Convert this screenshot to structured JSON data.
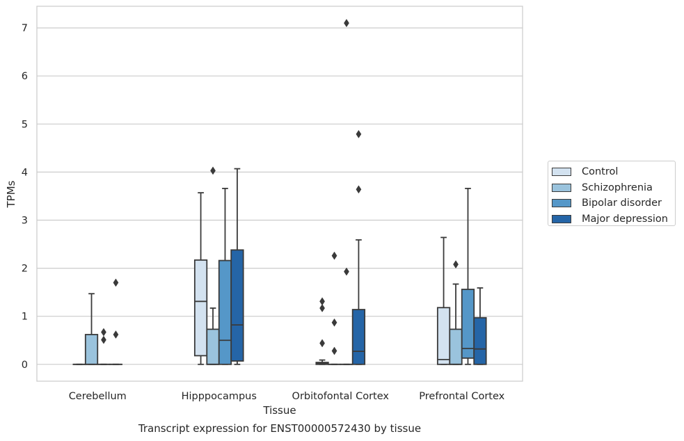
{
  "chart_data": {
    "type": "box",
    "title": "Transcript expression for ENST00000572430 by tissue",
    "xlabel": "Tissue",
    "ylabel": "TPMs",
    "ylim": [
      -0.35,
      7.45
    ],
    "yticks": [
      0,
      1,
      2,
      3,
      4,
      5,
      6,
      7
    ],
    "grid": "horizontal",
    "legend_position": "right",
    "categories": [
      "Cerebellum",
      "Hipppocampus",
      "Orbitofontal Cortex",
      "Prefrontal Cortex"
    ],
    "series": [
      {
        "name": "Control",
        "color": "#d3e2f0",
        "boxes": [
          {
            "whislo": 0,
            "q1": 0,
            "med": 0,
            "q3": 0,
            "whishi": 0,
            "fliers": []
          },
          {
            "whislo": 0,
            "q1": 0.18,
            "med": 1.31,
            "q3": 2.17,
            "whishi": 3.57,
            "fliers": []
          },
          {
            "whislo": 0,
            "q1": 0,
            "med": 0.02,
            "q3": 0.04,
            "whishi": 0.09,
            "fliers": [
              0.44,
              1.17,
              1.31
            ]
          },
          {
            "whislo": 0,
            "q1": 0,
            "med": 0.1,
            "q3": 1.18,
            "whishi": 2.64,
            "fliers": []
          }
        ]
      },
      {
        "name": "Schizophrenia",
        "color": "#9ac3dd",
        "boxes": [
          {
            "whislo": 0,
            "q1": 0,
            "med": 0,
            "q3": 0.62,
            "whishi": 1.47,
            "fliers": []
          },
          {
            "whislo": 0,
            "q1": 0,
            "med": 0,
            "q3": 0.73,
            "whishi": 1.17,
            "fliers": [
              4.03
            ]
          },
          {
            "whislo": 0,
            "q1": 0,
            "med": 0,
            "q3": 0,
            "whishi": 0,
            "fliers": [
              0.28,
              0.87,
              2.26
            ]
          },
          {
            "whislo": 0,
            "q1": 0,
            "med": 0,
            "q3": 0.73,
            "whishi": 1.67,
            "fliers": [
              2.08
            ]
          }
        ]
      },
      {
        "name": "Bipolar disorder",
        "color": "#5597c8",
        "boxes": [
          {
            "whislo": 0,
            "q1": 0,
            "med": 0,
            "q3": 0,
            "whishi": 0,
            "fliers": [
              0.51,
              0.67
            ]
          },
          {
            "whislo": 0,
            "q1": 0,
            "med": 0.5,
            "q3": 2.16,
            "whishi": 3.66,
            "fliers": []
          },
          {
            "whislo": 0,
            "q1": 0,
            "med": 0,
            "q3": 0,
            "whishi": 0,
            "fliers": [
              1.93,
              7.1
            ]
          },
          {
            "whislo": 0,
            "q1": 0.13,
            "med": 0.33,
            "q3": 1.56,
            "whishi": 3.66,
            "fliers": []
          }
        ]
      },
      {
        "name": "Major depression",
        "color": "#2565a7",
        "boxes": [
          {
            "whislo": 0,
            "q1": 0,
            "med": 0,
            "q3": 0,
            "whishi": 0,
            "fliers": [
              0.62,
              1.7
            ]
          },
          {
            "whislo": 0,
            "q1": 0.07,
            "med": 0.82,
            "q3": 2.38,
            "whishi": 4.07,
            "fliers": []
          },
          {
            "whislo": 0,
            "q1": 0,
            "med": 0.27,
            "q3": 1.14,
            "whishi": 2.59,
            "fliers": [
              3.64,
              4.79
            ]
          },
          {
            "whislo": 0,
            "q1": 0,
            "med": 0.32,
            "q3": 0.97,
            "whishi": 1.59,
            "fliers": []
          }
        ]
      }
    ]
  }
}
